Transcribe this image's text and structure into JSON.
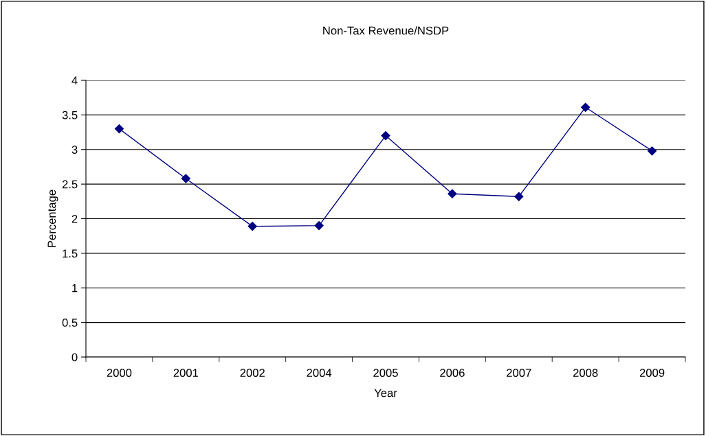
{
  "chart_data": {
    "type": "line",
    "title": "Non-Tax Revenue/NSDP",
    "xlabel": "Year",
    "ylabel": "Percentage",
    "categories": [
      "2000",
      "2001",
      "2002",
      "2004",
      "2005",
      "2006",
      "2007",
      "2008",
      "2009"
    ],
    "series": [
      {
        "color": "#000080",
        "values": [
          3.3,
          2.58,
          1.89,
          1.9,
          3.2,
          2.36,
          2.32,
          3.61,
          2.98
        ]
      }
    ],
    "ylim": [
      0,
      4
    ],
    "yticks": [
      0,
      0.5,
      1,
      1.5,
      2,
      2.5,
      3,
      3.5,
      4
    ],
    "grid": "y",
    "marker": "diamond",
    "line_style": "solid",
    "legend": false
  }
}
